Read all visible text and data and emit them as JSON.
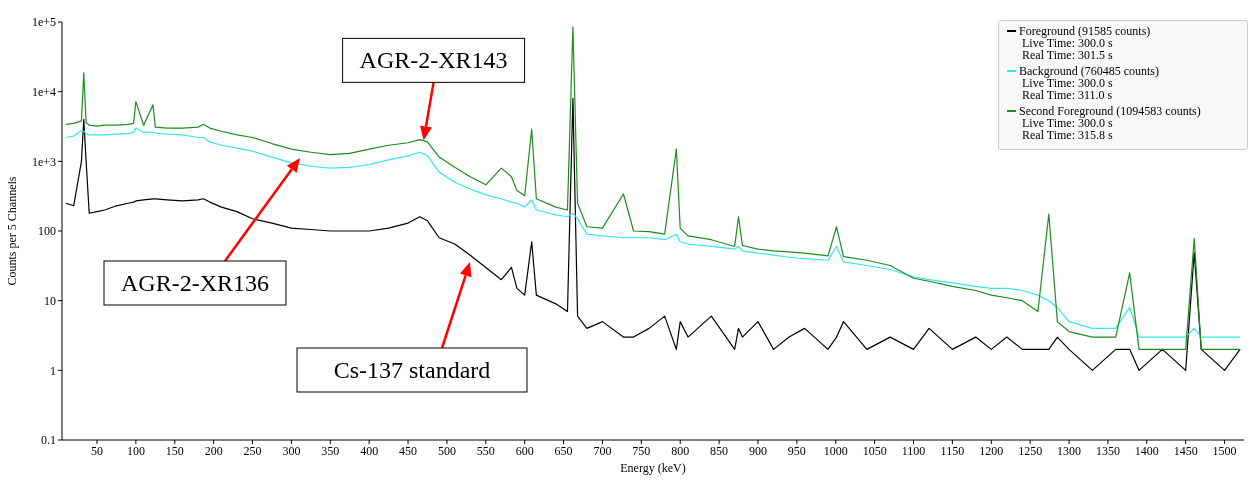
{
  "chart_data": {
    "type": "line",
    "xlabel": "Energy (keV)",
    "ylabel": "Counts per 5 Channels",
    "log": "y",
    "legend": "top right",
    "x": [
      10,
      20,
      30,
      33,
      36,
      40,
      50,
      60,
      75,
      90,
      97,
      100,
      110,
      122,
      125,
      140,
      160,
      180,
      187,
      195,
      210,
      230,
      250,
      275,
      300,
      325,
      350,
      375,
      400,
      425,
      450,
      465,
      475,
      490,
      510,
      530,
      550,
      570,
      583,
      590,
      600,
      609,
      615,
      640,
      655,
      662,
      668,
      680,
      700,
      727,
      740,
      760,
      780,
      795,
      800,
      810,
      840,
      870,
      875,
      880,
      900,
      920,
      940,
      960,
      990,
      1001,
      1010,
      1040,
      1070,
      1100,
      1120,
      1150,
      1180,
      1200,
      1220,
      1240,
      1260,
      1274,
      1285,
      1300,
      1330,
      1360,
      1378,
      1390,
      1420,
      1450,
      1461,
      1470,
      1500,
      1520
    ],
    "xlim": [
      5,
      1525
    ],
    "xticks": [
      50,
      100,
      150,
      200,
      250,
      300,
      350,
      400,
      450,
      500,
      550,
      600,
      650,
      700,
      750,
      800,
      850,
      900,
      950,
      1000,
      1050,
      1100,
      1150,
      1200,
      1250,
      1300,
      1350,
      1400,
      1450,
      1500
    ],
    "ylim": [
      0.1,
      100000
    ],
    "yticks": [
      0.1,
      1,
      10,
      100,
      {
        "value": 1000,
        "label": "1e+3"
      },
      {
        "value": 10000,
        "label": "1e+4"
      },
      {
        "value": 100000,
        "label": "1e+5"
      }
    ],
    "series": [
      {
        "name": "Foreground (91585 counts)",
        "color": "#000000",
        "values": [
          250,
          230,
          1000,
          4000,
          1000,
          180,
          190,
          200,
          230,
          250,
          260,
          270,
          280,
          290,
          290,
          280,
          270,
          280,
          290,
          260,
          220,
          190,
          150,
          130,
          110,
          105,
          100,
          100,
          100,
          110,
          130,
          160,
          140,
          80,
          65,
          45,
          30,
          20,
          30,
          15,
          12,
          70,
          12,
          9,
          7,
          8000,
          6,
          4,
          5,
          3,
          3,
          4,
          6,
          2,
          5,
          3,
          6,
          2,
          4,
          3,
          5,
          2,
          3,
          4,
          2,
          3,
          5,
          2,
          3,
          2,
          4,
          2,
          3,
          2,
          3,
          2,
          2,
          2,
          3,
          2,
          1,
          2,
          2,
          1,
          2,
          1,
          49,
          2,
          1,
          2
        ]
      },
      {
        "name": "Background (760485 counts)",
        "color": "#33e8e8",
        "values": [
          2200,
          2300,
          2800,
          2700,
          2500,
          2400,
          2400,
          2400,
          2450,
          2500,
          2600,
          3000,
          2600,
          2600,
          2550,
          2450,
          2400,
          2200,
          2200,
          1900,
          1700,
          1550,
          1400,
          1150,
          950,
          850,
          800,
          820,
          900,
          1050,
          1200,
          1350,
          1200,
          700,
          500,
          400,
          330,
          290,
          260,
          250,
          220,
          280,
          200,
          170,
          160,
          180,
          150,
          90,
          85,
          80,
          80,
          80,
          75,
          90,
          70,
          65,
          60,
          55,
          60,
          52,
          48,
          45,
          42,
          40,
          38,
          60,
          36,
          32,
          28,
          22,
          20,
          18,
          16,
          15,
          15,
          14,
          12,
          10,
          8,
          5,
          4,
          4,
          8,
          3,
          3,
          3,
          4,
          3,
          3,
          3
        ]
      },
      {
        "name": "Second Foreground (1094583 counts)",
        "color": "#1e8c1e",
        "values": [
          3400,
          3500,
          3800,
          18600,
          3600,
          3300,
          3200,
          3300,
          3300,
          3400,
          3500,
          7200,
          3300,
          6500,
          3100,
          3000,
          3000,
          3100,
          3400,
          3000,
          2700,
          2400,
          2200,
          1800,
          1500,
          1350,
          1250,
          1300,
          1500,
          1700,
          1850,
          2050,
          1900,
          1150,
          820,
          600,
          460,
          800,
          600,
          380,
          320,
          2900,
          290,
          220,
          200,
          85000,
          250,
          115,
          110,
          340,
          100,
          98,
          90,
          1500,
          110,
          85,
          75,
          60,
          160,
          62,
          55,
          52,
          50,
          48,
          44,
          115,
          43,
          38,
          32,
          21,
          19,
          16,
          14,
          12,
          11,
          10,
          7,
          175,
          5,
          3.6,
          3,
          3,
          25,
          2,
          2,
          2,
          78,
          2,
          2,
          2
        ]
      }
    ],
    "annotations": [
      {
        "text": "AGR-2-XR143",
        "x": 470,
        "y": 2000
      },
      "AGR-2-XR136",
      "Cs-137 standard",
      "Live Time: 300.0 s",
      "Real Time: 301.5 s",
      "Live Time: 300.0 s",
      "Real Time: 311.0 s",
      "Live Time: 300.0 s",
      "Real Time: 315.8 s"
    ]
  }
}
